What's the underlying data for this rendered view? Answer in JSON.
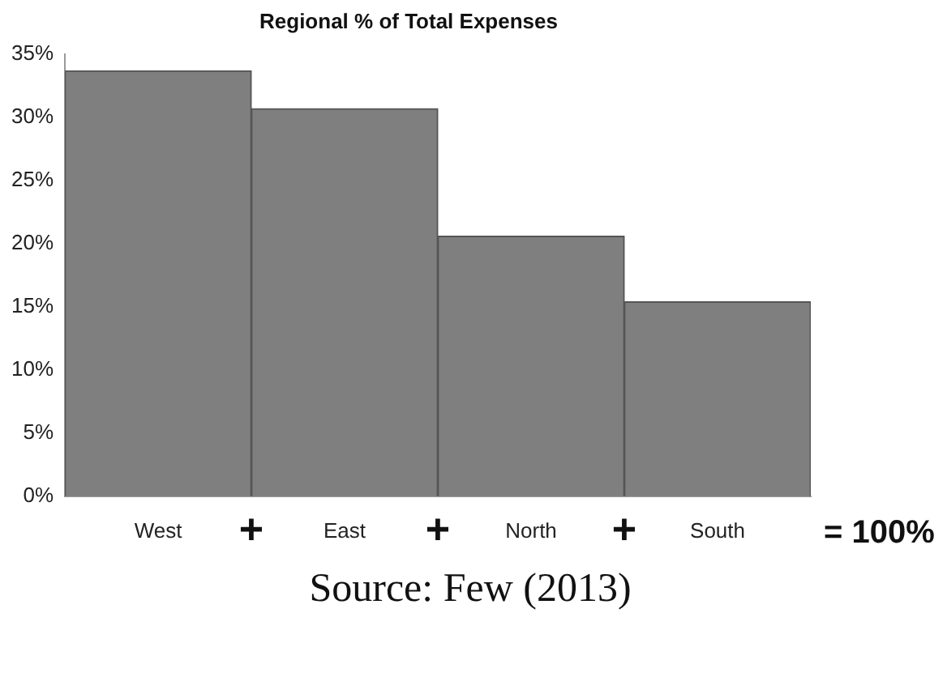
{
  "chart_data": {
    "type": "bar",
    "title": "Regional % of Total Expenses",
    "categories": [
      "West",
      "East",
      "North",
      "South"
    ],
    "values": [
      33.7,
      30.7,
      20.6,
      15.4
    ],
    "color": "#7f7f7f",
    "ylim": [
      0,
      35
    ],
    "yticks": [
      {
        "value": 0,
        "label": "0%"
      },
      {
        "value": 5,
        "label": "5%"
      },
      {
        "value": 10,
        "label": "10%"
      },
      {
        "value": 15,
        "label": "15%"
      },
      {
        "value": 20,
        "label": "20%"
      },
      {
        "value": 25,
        "label": "25%"
      },
      {
        "value": 30,
        "label": "30%"
      },
      {
        "value": 35,
        "label": "35%"
      }
    ],
    "grid": false,
    "legend": false,
    "annotations": [
      "+",
      "+",
      "+",
      "= 100%",
      "Source: Few (2013)"
    ]
  }
}
